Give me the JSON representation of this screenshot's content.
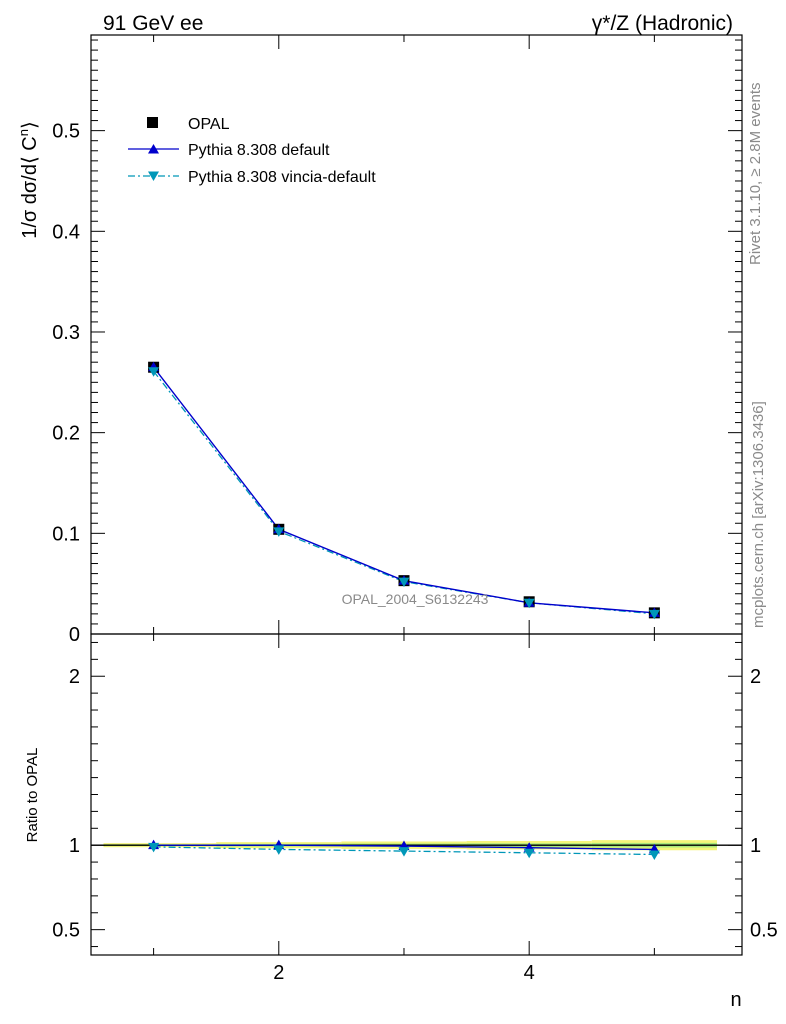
{
  "header": {
    "left_title": "91 GeV ee",
    "right_title": "γ*/Z (Hadronic)"
  },
  "side_labels": {
    "rivet": "Rivet 3.1.10, ≥ 2.8M events",
    "mcplots": "mcplots.cern.ch [arXiv:1306.3436]"
  },
  "analysis_label": "OPAL_2004_S6132243",
  "colors": {
    "data": "#000000",
    "pythia_default": "#0000cc",
    "vincia": "#0097b8",
    "band_outer": "#f5f57a",
    "band_inner": "#a8e87a"
  },
  "chart_data": [
    {
      "type": "line",
      "panel": "main",
      "ylabel": "1/σ dσ/d⟨ Cⁿ⟩",
      "ylabel_parts": {
        "pre": "1/σ dσ/d⟨ C",
        "sup": "n",
        "post": "⟩"
      },
      "xlim": [
        0.5,
        5.7
      ],
      "ylim": [
        0,
        0.595
      ],
      "y_ticks": [
        0,
        0.1,
        0.2,
        0.3,
        0.4,
        0.5
      ],
      "y_tick_labels": [
        "0",
        "0.1",
        "0.2",
        "0.3",
        "0.4",
        "0.5"
      ],
      "legend_position": "top-left",
      "x": [
        1,
        2,
        3,
        4,
        5
      ],
      "series": [
        {
          "name": "OPAL",
          "style": "marker-square",
          "values": [
            0.265,
            0.104,
            0.053,
            0.032,
            0.021
          ]
        },
        {
          "name": "Pythia 8.308 default",
          "style": "solid-triangle-up",
          "values": [
            0.265,
            0.104,
            0.053,
            0.031,
            0.021
          ]
        },
        {
          "name": "Pythia 8.308 vincia-default",
          "style": "dashdot-triangle-down",
          "values": [
            0.261,
            0.102,
            0.052,
            0.031,
            0.02
          ]
        }
      ]
    },
    {
      "type": "line",
      "panel": "ratio",
      "ylabel": "Ratio to OPAL",
      "xlabel": "n",
      "xlim": [
        0.5,
        5.7
      ],
      "ylim": [
        0.35,
        2.25
      ],
      "x_ticks": [
        2,
        4
      ],
      "x_tick_labels": [
        "2",
        "4"
      ],
      "y_ticks": [
        0.5,
        1,
        2
      ],
      "y_tick_labels": [
        "0.5",
        "1",
        "2"
      ],
      "x": [
        1,
        2,
        3,
        4,
        5
      ],
      "band": {
        "x": [
          0.6,
          1.5,
          2.5,
          3.5,
          4.5,
          5.5
        ],
        "half_width": [
          0.012,
          0.018,
          0.022,
          0.025,
          0.03,
          0.03
        ]
      },
      "series": [
        {
          "name": "Pythia 8.308 default",
          "values": [
            1.0,
            1.0,
            0.995,
            0.985,
            0.975
          ]
        },
        {
          "name": "Pythia 8.308 vincia-default",
          "values": [
            0.99,
            0.975,
            0.965,
            0.955,
            0.945
          ]
        }
      ]
    }
  ]
}
